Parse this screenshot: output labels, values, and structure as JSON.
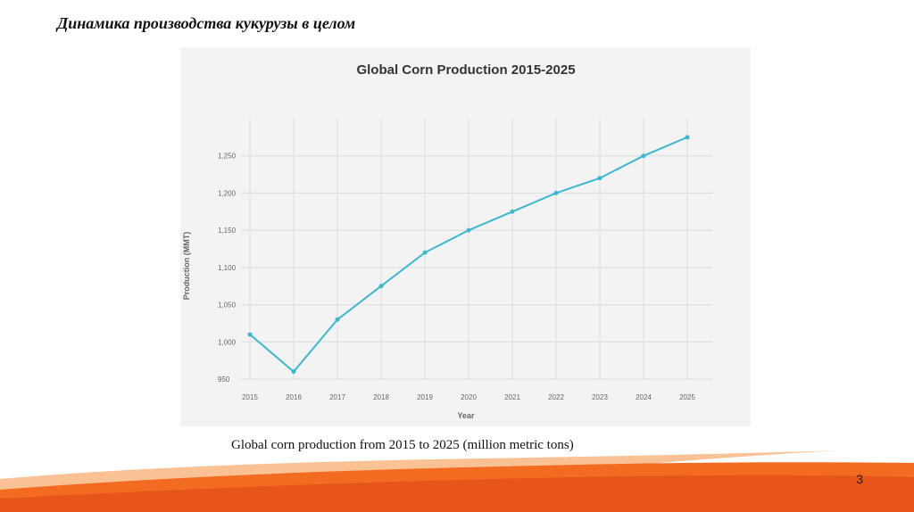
{
  "slide": {
    "title": "Динамика производства кукурузы в целом",
    "caption": "Global corn production from 2015 to 2025 (million metric tons)",
    "page_number": "3"
  },
  "colors": {
    "line": "#3bb8cf",
    "grid": "#dcdcdc",
    "panel_bg": "#f2f3f2",
    "wave_orange": "#f26b21",
    "wave_light": "#f9b17a"
  },
  "chart_data": {
    "type": "line",
    "title": "Global Corn Production 2015-2025",
    "xlabel": "Year",
    "ylabel": "Production (MMT)",
    "categories": [
      "2015",
      "2016",
      "2017",
      "2018",
      "2019",
      "2020",
      "2021",
      "2022",
      "2023",
      "2024",
      "2025"
    ],
    "series": [
      {
        "name": "Production",
        "values": [
          1010,
          960,
          1030,
          1075,
          1120,
          1150,
          1175,
          1200,
          1220,
          1250,
          1275
        ]
      }
    ],
    "ylim": [
      950,
      1300
    ],
    "yticks": [
      950,
      1000,
      1050,
      1100,
      1150,
      1200,
      1250
    ],
    "ytick_labels": [
      "950",
      "1,000",
      "1,050",
      "1,100",
      "1,150",
      "1,200",
      "1,250"
    ],
    "grid": true,
    "legend": "none"
  }
}
